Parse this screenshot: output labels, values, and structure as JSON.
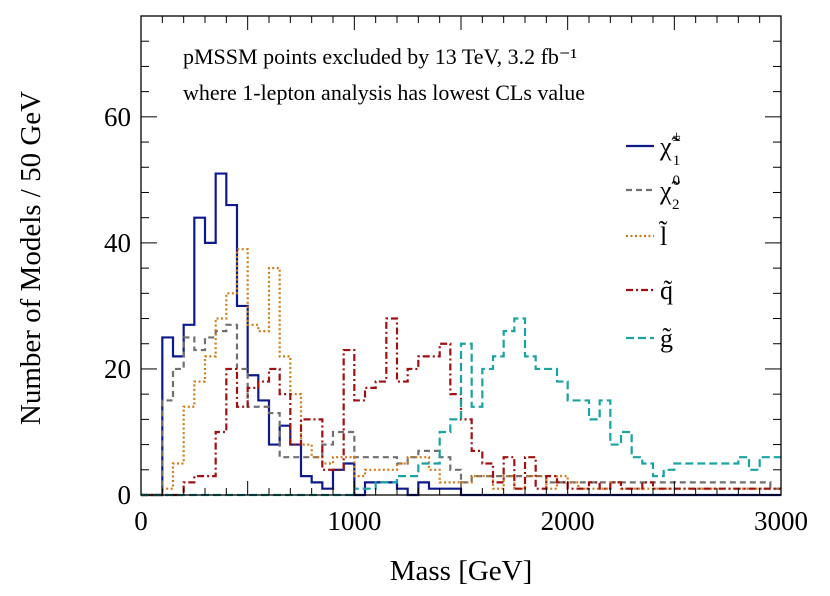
{
  "chart_data": {
    "type": "histogram",
    "title": "",
    "annotations": [
      "pMSSM points excluded by 13 TeV, 3.2 fb⁻¹",
      "where 1-lepton analysis has lowest CLs value"
    ],
    "xlabel": "Mass [GeV]",
    "ylabel": "Number of Models / 50 GeV",
    "xlim": [
      0,
      3000
    ],
    "ylim": [
      0,
      76
    ],
    "x_ticks": [
      "0",
      "1000",
      "2000",
      "3000"
    ],
    "y_ticks": [
      "0",
      "20",
      "40",
      "60"
    ],
    "bin_width": 50,
    "bin_start": 0,
    "legend_position": "right",
    "series": [
      {
        "name": "chargino1",
        "label": "χ̃",
        "sup": "±",
        "sub": "1",
        "color": "#0c1a8c",
        "dash": "",
        "values": [
          0,
          0,
          25,
          22,
          27,
          44,
          40,
          51,
          46,
          30,
          19,
          15,
          8,
          11,
          8,
          3,
          2,
          1,
          4,
          5,
          0,
          2,
          2,
          2,
          1,
          0,
          2,
          1,
          1,
          1,
          0,
          0,
          0,
          0,
          0,
          0,
          0,
          0,
          0,
          0,
          0,
          0,
          0,
          0,
          0,
          0,
          0,
          0,
          0,
          0,
          0,
          0,
          0,
          0,
          0,
          0,
          0,
          0,
          0,
          0
        ]
      },
      {
        "name": "neutralino2",
        "label": "χ̃",
        "sup": "0",
        "sub": "2",
        "color": "#707070",
        "dash": "6,4",
        "values": [
          0,
          0,
          15,
          20,
          25,
          23,
          25,
          26,
          27,
          20,
          14,
          14,
          13,
          6,
          6,
          6,
          6,
          8,
          10,
          10,
          6,
          6,
          6,
          6,
          5,
          6,
          7,
          7,
          6,
          4,
          2,
          3,
          3,
          3,
          3,
          3,
          3,
          3,
          2,
          2,
          2,
          2,
          2,
          2,
          2,
          2,
          2,
          2,
          2,
          2,
          2,
          2,
          2,
          2,
          2,
          2,
          2,
          2,
          2,
          1
        ]
      },
      {
        "name": "slepton",
        "label": "l̃",
        "sup": "",
        "sub": "",
        "color": "#d07b1a",
        "dash": "2,2.5",
        "values": [
          0,
          0,
          1,
          5,
          14,
          18,
          22,
          28,
          32,
          39,
          27,
          26,
          36,
          22,
          16,
          8,
          6,
          5,
          6,
          6,
          3,
          4,
          4,
          4,
          5,
          6,
          6,
          4,
          2,
          2,
          2,
          3,
          3,
          1,
          3,
          1,
          3,
          3,
          1,
          3,
          2,
          1,
          1,
          1,
          2,
          1,
          1,
          1,
          1,
          1,
          1,
          1,
          1,
          1,
          1,
          1,
          1,
          1,
          1,
          1
        ]
      },
      {
        "name": "squark",
        "label": "q̃",
        "sup": "",
        "sub": "",
        "color": "#a01010",
        "dash": "7,3,2,3",
        "values": [
          0,
          0,
          0,
          0,
          2,
          3,
          3,
          10,
          20,
          14,
          17,
          18,
          20,
          16,
          8,
          12,
          12,
          4,
          4,
          23,
          15,
          17,
          18,
          28,
          18,
          20,
          22,
          22,
          24,
          16,
          12,
          7,
          5,
          2,
          6,
          1,
          6,
          1,
          3,
          2,
          1,
          1,
          2,
          1,
          2,
          1,
          1,
          2,
          1,
          1,
          1,
          1,
          1,
          1,
          1,
          1,
          1,
          1,
          1,
          1
        ]
      },
      {
        "name": "gluino",
        "label": "g̃",
        "sup": "",
        "sub": "",
        "color": "#1aa3a3",
        "dash": "8,4",
        "values": [
          0,
          0,
          0,
          0,
          0,
          0,
          0,
          0,
          0,
          0,
          0,
          0,
          0,
          0,
          0,
          0,
          0,
          0,
          0,
          0,
          1,
          1,
          2,
          2,
          3,
          3,
          5,
          5,
          10,
          12,
          24,
          14,
          20,
          22,
          26,
          28,
          22,
          20,
          20,
          18,
          15,
          15,
          12,
          15,
          8,
          10,
          6,
          5,
          3,
          4,
          5,
          5,
          5,
          5,
          5,
          5,
          6,
          4,
          6,
          6
        ]
      }
    ]
  }
}
